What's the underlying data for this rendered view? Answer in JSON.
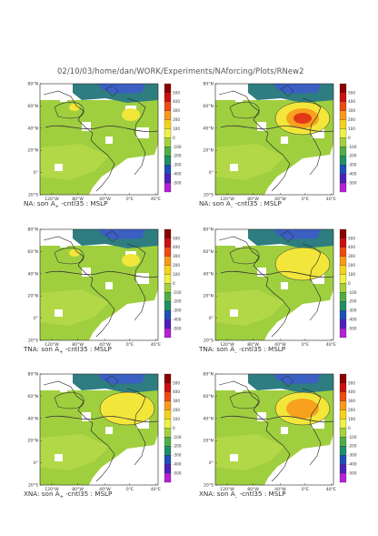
{
  "header": {
    "path_text": "02/10/03/home/dan/WORK/Experiments/NAforcing/Plots/RNew2"
  },
  "lat_labels": [
    "80°N",
    "60°N",
    "40°N",
    "20°N",
    "0°",
    "20°S"
  ],
  "lon_labels": [
    "120°W",
    "80°W",
    "40°W",
    "0°E",
    "40°E"
  ],
  "colorbar": {
    "levels": [
      "500",
      "400",
      "300",
      "200",
      "100",
      "0",
      "-100",
      "-200",
      "-300",
      "-400",
      "-500"
    ],
    "colors": [
      "#8b0000",
      "#cc1010",
      "#ee4a12",
      "#f79a1a",
      "#f4d21c",
      "#eef045",
      "#a4d040",
      "#4fae46",
      "#1f8f66",
      "#1f4fb5",
      "#4d20b8",
      "#b320d6"
    ]
  },
  "panels": [
    {
      "id": "na-aplus",
      "label_prefix": "NA: son A",
      "sub": "+",
      "label_suffix": " -cntl35 : MSLP",
      "hotspot": ""
    },
    {
      "id": "na-aminus",
      "label_prefix": "NA: son A",
      "sub": "–",
      "label_suffix": " -cntl35 : MSLP",
      "hotspot": "strong"
    },
    {
      "id": "tna-aplus",
      "label_prefix": "TNA: son A",
      "sub": "+",
      "label_suffix": " -cntl35 : MSLP",
      "hotspot": ""
    },
    {
      "id": "tna-aminus",
      "label_prefix": "TNA: son A",
      "sub": "–",
      "label_suffix": " -cntl35 : MSLP",
      "hotspot": "weak"
    },
    {
      "id": "xna-aplus",
      "label_prefix": "XNA: son A",
      "sub": "+",
      "label_suffix": " -cntl35 : MSLP",
      "hotspot": "weak"
    },
    {
      "id": "xna-aminus",
      "label_prefix": "XNA: son A",
      "sub": "–",
      "label_suffix": " -cntl35 : MSLP",
      "hotspot": "medium"
    }
  ]
}
